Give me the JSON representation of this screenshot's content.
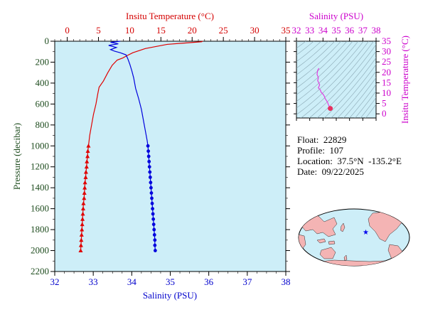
{
  "chart_data": [
    {
      "type": "line",
      "name": "profile",
      "top_axis": {
        "title": "Insitu Temperature (°C)",
        "range": [
          -2,
          35
        ],
        "ticks": [
          0,
          5,
          10,
          15,
          20,
          25,
          30,
          35
        ],
        "color": "#d40000"
      },
      "bottom_axis": {
        "title": "Salinity (PSU)",
        "range": [
          32,
          38
        ],
        "ticks": [
          32,
          33,
          34,
          35,
          36,
          37,
          38
        ],
        "color": "#0000cc"
      },
      "left_axis": {
        "title": "Pressure (decibar)",
        "range": [
          0,
          2200
        ],
        "reversed": true,
        "ticks": [
          0,
          200,
          400,
          600,
          800,
          1000,
          1200,
          1400,
          1600,
          1800,
          2000,
          2200
        ],
        "color": "#1f4d1f"
      },
      "series": [
        {
          "name": "Temperature",
          "color": "#e00000",
          "marker": "triangle",
          "x_axis": "top",
          "points": [
            [
              21.7,
              0
            ],
            [
              21.5,
              5
            ],
            [
              16.0,
              30
            ],
            [
              12.5,
              70
            ],
            [
              10.5,
              110
            ],
            [
              9.5,
              140
            ],
            [
              8.9,
              160
            ],
            [
              8.0,
              180
            ],
            [
              7.2,
              230
            ],
            [
              6.5,
              300
            ],
            [
              5.8,
              380
            ],
            [
              5.1,
              440
            ],
            [
              4.9,
              500
            ],
            [
              4.6,
              600
            ],
            [
              4.2,
              700
            ],
            [
              3.9,
              800
            ],
            [
              3.6,
              900
            ],
            [
              3.4,
              1000
            ],
            [
              3.3,
              1050
            ],
            [
              3.25,
              1100
            ],
            [
              3.15,
              1150
            ],
            [
              3.1,
              1200
            ],
            [
              3.0,
              1250
            ],
            [
              2.95,
              1300
            ],
            [
              2.85,
              1350
            ],
            [
              2.8,
              1400
            ],
            [
              2.75,
              1450
            ],
            [
              2.7,
              1500
            ],
            [
              2.6,
              1550
            ],
            [
              2.55,
              1600
            ],
            [
              2.5,
              1650
            ],
            [
              2.45,
              1700
            ],
            [
              2.4,
              1750
            ],
            [
              2.35,
              1800
            ],
            [
              2.3,
              1850
            ],
            [
              2.25,
              1900
            ],
            [
              2.2,
              1950
            ],
            [
              2.15,
              2000
            ]
          ],
          "marker_from_pressure": 1000
        },
        {
          "name": "Salinity",
          "color": "#0000dd",
          "marker": "circle",
          "x_axis": "bottom",
          "points": [
            [
              33.7,
              0
            ],
            [
              33.45,
              10
            ],
            [
              33.65,
              25
            ],
            [
              33.4,
              40
            ],
            [
              33.6,
              60
            ],
            [
              33.45,
              80
            ],
            [
              33.55,
              95
            ],
            [
              33.7,
              110
            ],
            [
              33.85,
              130
            ],
            [
              33.9,
              170
            ],
            [
              33.95,
              220
            ],
            [
              34.0,
              280
            ],
            [
              34.05,
              350
            ],
            [
              34.1,
              450
            ],
            [
              34.18,
              550
            ],
            [
              34.25,
              650
            ],
            [
              34.3,
              750
            ],
            [
              34.35,
              850
            ],
            [
              34.4,
              950
            ],
            [
              34.42,
              1000
            ],
            [
              34.43,
              1050
            ],
            [
              34.44,
              1100
            ],
            [
              34.45,
              1150
            ],
            [
              34.46,
              1200
            ],
            [
              34.47,
              1250
            ],
            [
              34.48,
              1300
            ],
            [
              34.49,
              1350
            ],
            [
              34.5,
              1400
            ],
            [
              34.51,
              1450
            ],
            [
              34.52,
              1500
            ],
            [
              34.53,
              1550
            ],
            [
              34.54,
              1600
            ],
            [
              34.55,
              1650
            ],
            [
              34.56,
              1700
            ],
            [
              34.57,
              1750
            ],
            [
              34.58,
              1800
            ],
            [
              34.59,
              1850
            ],
            [
              34.6,
              1900
            ],
            [
              34.6,
              1950
            ],
            [
              34.61,
              2000
            ]
          ],
          "marker_from_pressure": 1000
        }
      ],
      "background": "#cdeef8"
    },
    {
      "type": "scatter",
      "name": "ts_diagram",
      "x_axis": {
        "title": "Salinity (PSU)",
        "range": [
          32,
          38
        ],
        "ticks": [
          32,
          33,
          34,
          35,
          36,
          37,
          38
        ],
        "color": "#cc00cc"
      },
      "y_axis": {
        "title": "Insitu Temperature (°C)",
        "range": [
          -2,
          35
        ],
        "ticks": [
          0,
          5,
          10,
          15,
          20,
          25,
          30,
          35
        ],
        "color": "#cc00cc"
      },
      "series": [
        {
          "name": "T-S",
          "color": "#e040e0",
          "points": [
            [
              33.7,
              22.0
            ],
            [
              33.6,
              21.0
            ],
            [
              33.55,
              19.0
            ],
            [
              33.65,
              17.5
            ],
            [
              33.6,
              16.0
            ],
            [
              33.75,
              14.0
            ],
            [
              33.65,
              12.5
            ],
            [
              33.8,
              11.5
            ],
            [
              33.85,
              10.5
            ],
            [
              34.0,
              9.5
            ],
            [
              34.1,
              8.5
            ],
            [
              34.15,
              7.5
            ],
            [
              34.25,
              6.5
            ],
            [
              34.35,
              5.5
            ],
            [
              34.4,
              4.5
            ],
            [
              34.45,
              3.8
            ],
            [
              34.5,
              3.2
            ],
            [
              34.55,
              2.8
            ],
            [
              34.6,
              2.2
            ]
          ],
          "dense_end": [
            34.55,
            2.6
          ]
        }
      ],
      "background": "#cdeef8"
    }
  ],
  "info": {
    "float_label": "Float:",
    "float_value": "22829",
    "profile_label": "Profile:",
    "profile_value": "107",
    "location_label": "Location:",
    "location_value": "37.5°N  -135.2°E",
    "date_label": "Date:",
    "date_value": "09/22/2025"
  },
  "map": {
    "ocean_color": "#cdeef8",
    "land_color": "#f4b4b4",
    "marker_color": "#0000ee",
    "marker_lon": -135.2,
    "marker_lat": 37.5
  }
}
